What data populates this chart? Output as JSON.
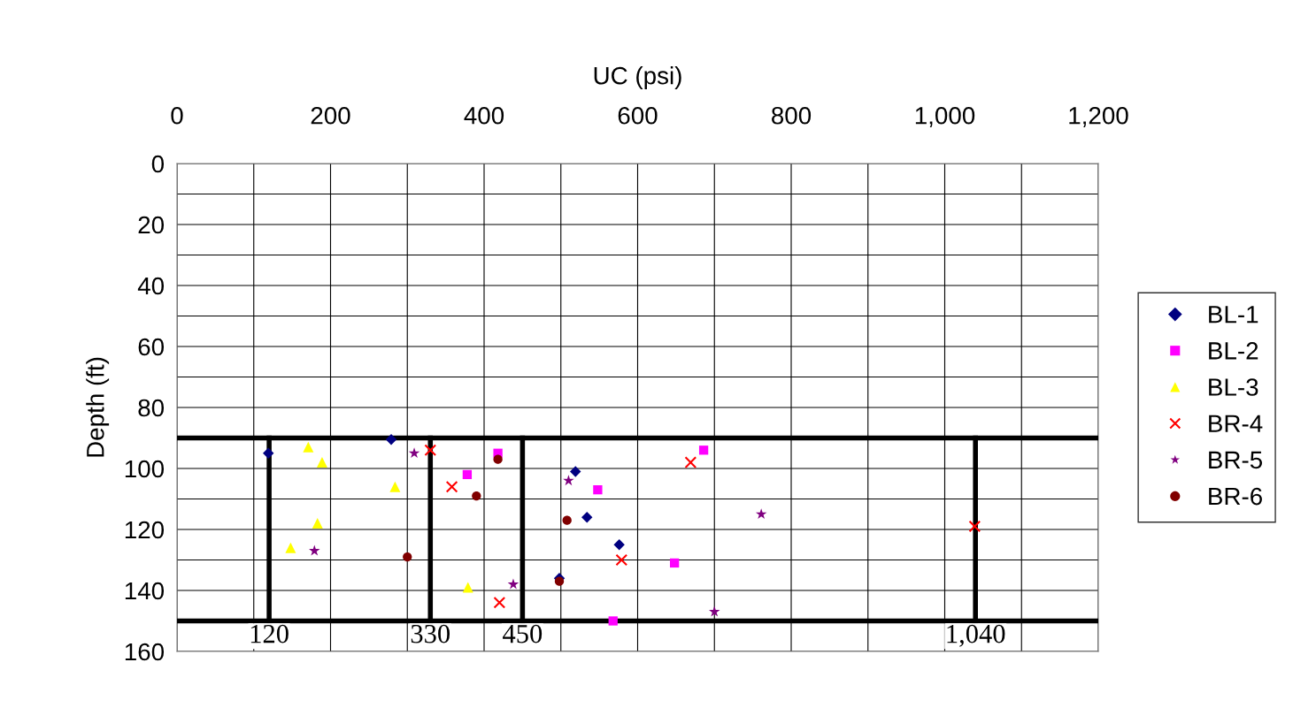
{
  "chart_data": {
    "type": "scatter",
    "xlabel": "UC (psi)",
    "ylabel": "Depth (ft)",
    "xlim": [
      0,
      1200
    ],
    "ylim": [
      160,
      0
    ],
    "xticks": [
      0,
      {
        "value": 100,
        "label": null
      },
      200,
      {
        "value": 300,
        "label": null
      },
      400,
      {
        "value": 500,
        "label": null
      },
      600,
      {
        "value": 700,
        "label": null
      },
      800,
      {
        "value": 900,
        "label": null
      },
      {
        "value": 1000,
        "label": "1,000"
      },
      {
        "value": 1100,
        "label": null
      },
      {
        "value": 1200,
        "label": "1,200"
      }
    ],
    "yticks": [
      0,
      {
        "value": 10,
        "label": null
      },
      20,
      {
        "value": 30,
        "label": null
      },
      40,
      {
        "value": 50,
        "label": null
      },
      60,
      {
        "value": 70,
        "label": null
      },
      80,
      100,
      {
        "value": 110,
        "label": null
      },
      120,
      {
        "value": 130,
        "label": null
      },
      140,
      160
    ],
    "grid": true,
    "legend": "right",
    "series": [
      {
        "name": "BL-1",
        "color": "#000080",
        "marker": "diamond",
        "x": [
          119,
          279,
          519,
          534,
          576,
          498
        ],
        "values": [
          95,
          90.5,
          101,
          116,
          125,
          136
        ]
      },
      {
        "name": "BL-2",
        "color": "#ff00ff",
        "marker": "square",
        "x": [
          686,
          378,
          418,
          548,
          648,
          568
        ],
        "values": [
          94,
          102,
          95,
          107,
          131,
          150
        ]
      },
      {
        "name": "BL-3",
        "color": "#ffff00",
        "marker": "triangle",
        "x": [
          171,
          189,
          284,
          183,
          148,
          379
        ],
        "values": [
          93,
          98,
          106,
          118,
          126,
          139
        ]
      },
      {
        "name": "BR-4",
        "color": "#ff0000",
        "marker": "cross",
        "x": [
          330,
          358,
          669,
          579,
          420,
          1039
        ],
        "values": [
          94,
          106,
          98,
          130,
          144,
          119
        ]
      },
      {
        "name": "BR-5",
        "color": "#800080",
        "marker": "star",
        "x": [
          309,
          179,
          510,
          761,
          438,
          700
        ],
        "values": [
          95,
          127,
          104,
          115,
          138,
          147
        ]
      },
      {
        "name": "BR-6",
        "color": "#800000",
        "marker": "circle",
        "x": [
          418,
          390,
          508,
          300,
          498
        ],
        "values": [
          97,
          109,
          117,
          129,
          137
        ]
      }
    ],
    "ref_lines": [
      {
        "axis": "y",
        "value": 90,
        "color": "#000000"
      },
      {
        "axis": "y",
        "value": 150,
        "color": "#000000"
      },
      {
        "axis": "x",
        "value": 120,
        "label": "120",
        "color": "#000000"
      },
      {
        "axis": "x",
        "value": 330,
        "label": "330",
        "color": "#000000"
      },
      {
        "axis": "x",
        "value": 450,
        "label": "450",
        "color": "#000000"
      },
      {
        "axis": "x",
        "value": 1040,
        "label": "1,040",
        "color": "#000000"
      }
    ]
  }
}
